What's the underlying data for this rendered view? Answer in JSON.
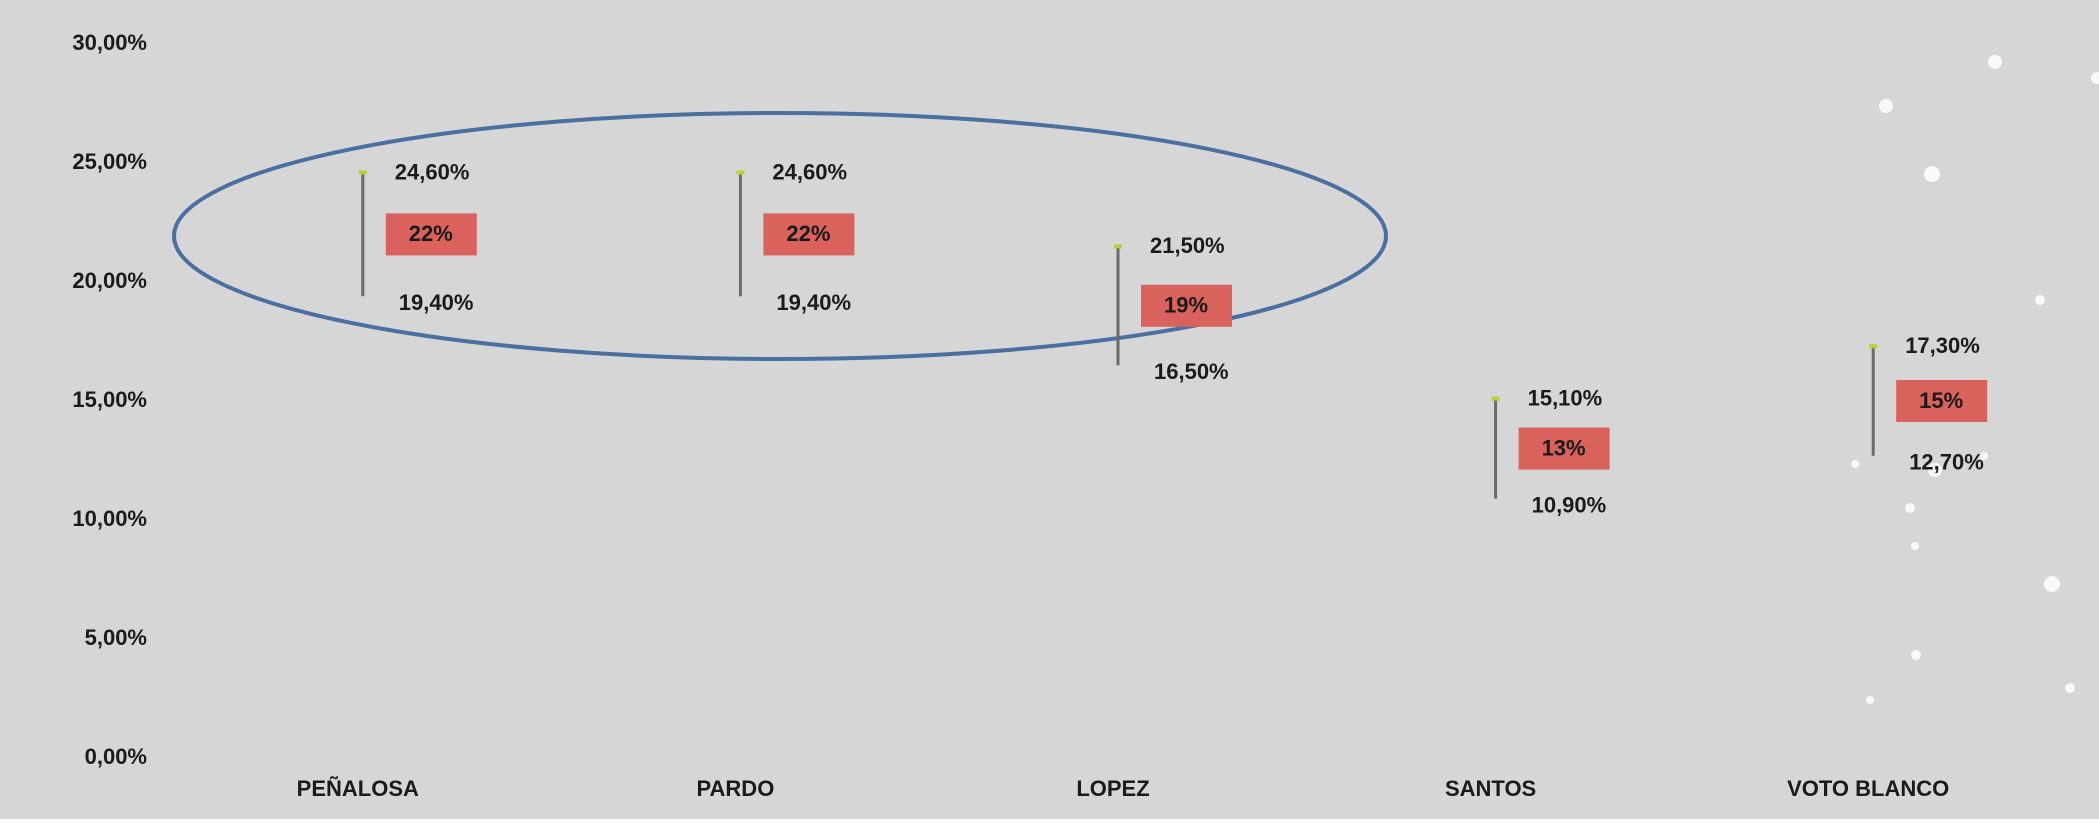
{
  "chart_data": {
    "type": "hilo",
    "categories": [
      "PEÑALOSA",
      "PARDO",
      "LOPEZ",
      "SANTOS",
      "VOTO BLANCO"
    ],
    "high": [
      24.6,
      24.6,
      21.5,
      15.1,
      17.3
    ],
    "high_labels": [
      "24,60%",
      "24,60%",
      "21,50%",
      "15,10%",
      "17,30%"
    ],
    "low": [
      19.4,
      19.4,
      16.5,
      10.9,
      12.7
    ],
    "low_labels": [
      "19,40%",
      "19,40%",
      "16,50%",
      "10,90%",
      "12,70%"
    ],
    "mid": [
      22,
      22,
      19,
      13,
      15
    ],
    "mid_labels": [
      "22%",
      "22%",
      "19%",
      "13%",
      "15%"
    ],
    "line_color": "#6b6b6b",
    "high_marker_color": "#b5d334",
    "mid_color": "#d9625c",
    "ylim": [
      0,
      30
    ],
    "yticks": [
      {
        "value": 0,
        "label": "0,00%"
      },
      {
        "value": 5,
        "label": "5,00%"
      },
      {
        "value": 10,
        "label": "10,00%"
      },
      {
        "value": 15,
        "label": "15,00%"
      },
      {
        "value": 20,
        "label": "20,00%"
      },
      {
        "value": 25,
        "label": "25,00%"
      },
      {
        "value": 30,
        "label": "30,00%"
      }
    ]
  }
}
